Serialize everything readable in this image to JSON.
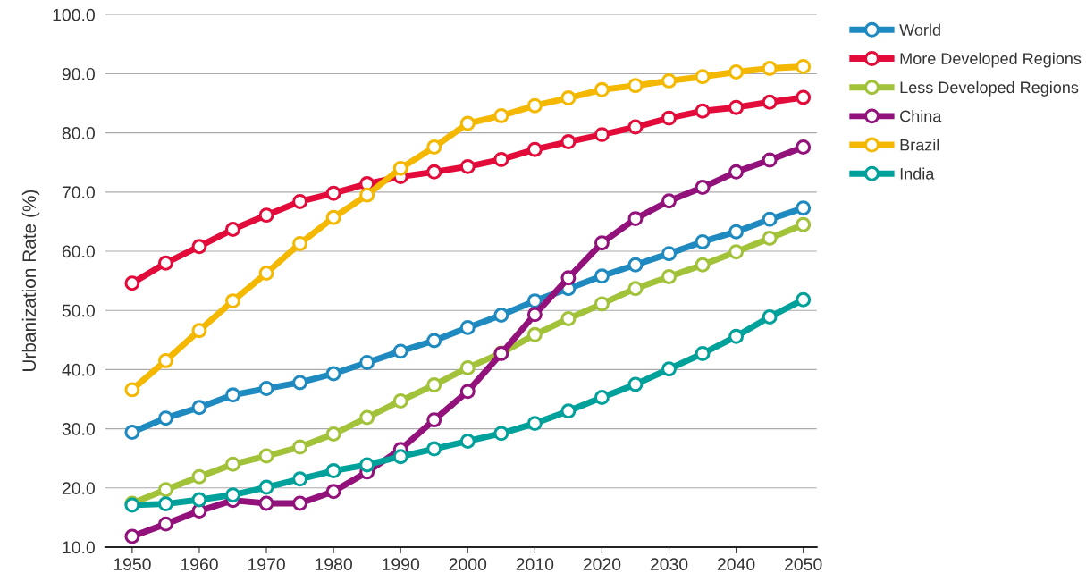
{
  "chart_data": {
    "type": "line",
    "ylabel": "Urbanization Rate (%)",
    "x": [
      1950,
      1955,
      1960,
      1965,
      1970,
      1975,
      1980,
      1985,
      1990,
      1995,
      2000,
      2005,
      2010,
      2015,
      2020,
      2025,
      2030,
      2035,
      2040,
      2045,
      2050
    ],
    "series": [
      {
        "name": "World",
        "color": "#1f8ac0",
        "values": [
          29.4,
          31.8,
          33.6,
          35.7,
          36.8,
          37.8,
          39.3,
          41.2,
          43.1,
          44.9,
          47.1,
          49.2,
          51.6,
          53.7,
          55.8,
          57.7,
          59.6,
          61.6,
          63.3,
          65.4,
          67.3
        ]
      },
      {
        "name": "More Developed Regions",
        "color": "#e30b3a",
        "values": [
          54.6,
          58.0,
          60.8,
          63.7,
          66.1,
          68.4,
          69.8,
          71.4,
          72.6,
          73.4,
          74.3,
          75.5,
          77.2,
          78.5,
          79.7,
          81.0,
          82.5,
          83.7,
          84.3,
          85.2,
          86.0
        ]
      },
      {
        "name": "Less Developed Regions",
        "color": "#a2c23a",
        "values": [
          17.4,
          19.7,
          21.9,
          24.0,
          25.4,
          26.9,
          29.1,
          31.9,
          34.7,
          37.4,
          40.3,
          42.8,
          45.9,
          48.6,
          51.1,
          53.7,
          55.7,
          57.7,
          59.9,
          62.2,
          64.5
        ]
      },
      {
        "name": "China",
        "color": "#92117a",
        "values": [
          11.8,
          13.9,
          16.1,
          17.9,
          17.4,
          17.4,
          19.4,
          22.7,
          26.5,
          31.5,
          36.3,
          42.7,
          49.3,
          55.5,
          61.4,
          65.5,
          68.5,
          70.8,
          73.4,
          75.4,
          77.6
        ]
      },
      {
        "name": "Brazil",
        "color": "#f5b800",
        "values": [
          36.6,
          41.5,
          46.6,
          51.6,
          56.3,
          61.3,
          65.7,
          69.5,
          74.0,
          77.6,
          81.6,
          82.9,
          84.6,
          85.9,
          87.3,
          88.0,
          88.8,
          89.5,
          90.3,
          90.9,
          91.2
        ]
      },
      {
        "name": "India",
        "color": "#00a19a",
        "values": [
          17.1,
          17.3,
          18.0,
          18.8,
          20.1,
          21.5,
          22.9,
          23.9,
          25.3,
          26.6,
          27.9,
          29.2,
          30.9,
          33.0,
          35.3,
          37.5,
          40.1,
          42.7,
          45.6,
          48.9,
          51.8
        ]
      }
    ],
    "xlim": [
      1946,
      2052
    ],
    "xticks": [
      1950,
      1960,
      1970,
      1980,
      1990,
      2000,
      2010,
      2020,
      2030,
      2040,
      2050
    ],
    "ylim": [
      10,
      100
    ],
    "yticks": [
      {
        "value": 10,
        "label": "10.0"
      },
      {
        "value": 20,
        "label": "20.0"
      },
      {
        "value": 30,
        "label": "30.0"
      },
      {
        "value": 40,
        "label": "40.0"
      },
      {
        "value": 50,
        "label": "50.0"
      },
      {
        "value": 60,
        "label": "60.0"
      },
      {
        "value": 70,
        "label": "70.0"
      },
      {
        "value": 80,
        "label": "80.0"
      },
      {
        "value": 90,
        "label": "90.0"
      },
      {
        "value": 100,
        "label": "100.0"
      }
    ],
    "grid": "y",
    "legend": "top right",
    "marker": "circle",
    "line_style": "solid"
  }
}
